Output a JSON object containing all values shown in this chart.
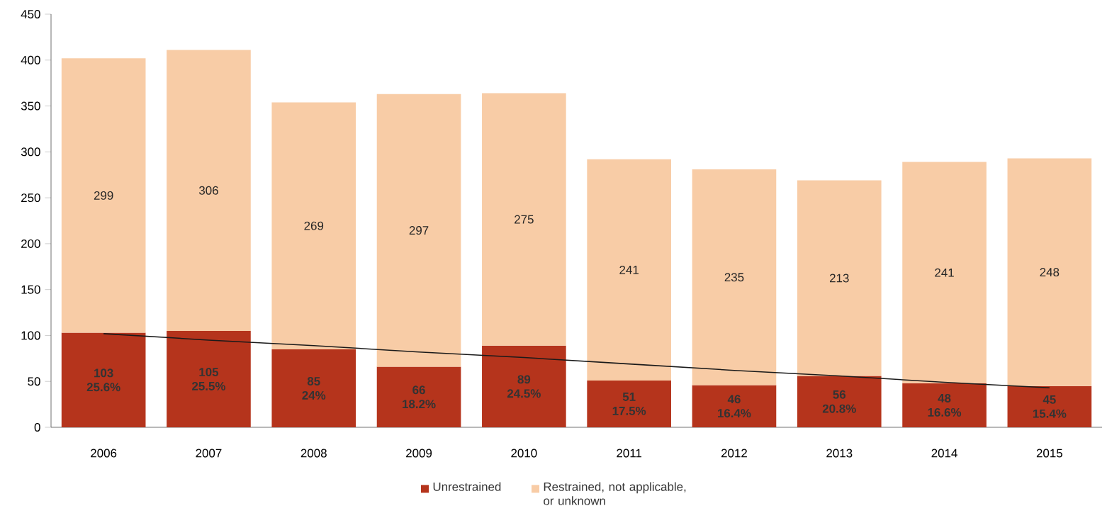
{
  "chart_data": {
    "type": "bar",
    "stacked": true,
    "categories": [
      "2006",
      "2007",
      "2008",
      "2009",
      "2010",
      "2011",
      "2012",
      "2013",
      "2014",
      "2015"
    ],
    "series": [
      {
        "name": "Unrestrained",
        "color": "#b5341c",
        "values": [
          103,
          105,
          85,
          66,
          89,
          51,
          46,
          56,
          48,
          45
        ],
        "value_labels": [
          "103 25.6%",
          "105 25.5%",
          "85 24%",
          "66 18.2%",
          "89 24.5%",
          "51 17.5%",
          "46 16.4%",
          "56 20.8%",
          "48 16.6%",
          "45 15.4%"
        ]
      },
      {
        "name": "Restrained, not applicable, or unknown",
        "color": "#f8cca6",
        "values": [
          299,
          306,
          269,
          297,
          275,
          241,
          235,
          213,
          241,
          248
        ],
        "data_labels": true
      },
      {
        "type": "line",
        "color": "#1a1a1a",
        "values": [
          102,
          95,
          89,
          82,
          76,
          69,
          62,
          56,
          49,
          43
        ]
      }
    ],
    "ylim": [
      0,
      450
    ],
    "yticks": [
      0,
      50,
      100,
      150,
      200,
      250,
      300,
      350,
      400,
      450
    ],
    "grid": false,
    "legend": "bottom"
  }
}
